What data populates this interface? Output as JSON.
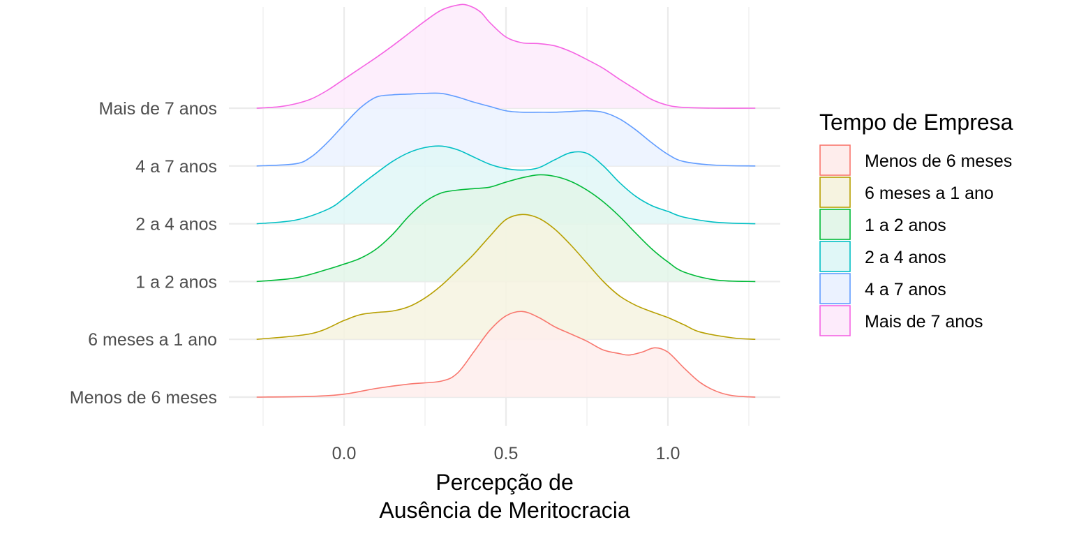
{
  "chart_data": {
    "type": "ridgeline",
    "xlabel_line1": "Percepção de",
    "xlabel_line2": "Ausência de Meritocracia",
    "xticks": [
      0.0,
      0.5,
      1.0
    ],
    "xtick_labels": [
      "0.0",
      "0.5",
      "1.0"
    ],
    "xlim": [
      -0.27,
      1.27
    ],
    "grid": true,
    "legend": {
      "title": "Tempo de Empresa",
      "placement": "right"
    },
    "series": [
      {
        "name": "Menos de 6 meses",
        "color": "#F8766D",
        "fill": "#FEEDEC",
        "x": [
          -0.27,
          -0.1,
          0.0,
          0.1,
          0.2,
          0.3,
          0.35,
          0.4,
          0.45,
          0.5,
          0.55,
          0.6,
          0.65,
          0.7,
          0.75,
          0.8,
          0.85,
          0.88,
          0.92,
          0.96,
          1.0,
          1.05,
          1.1,
          1.15,
          1.2,
          1.27
        ],
        "y": [
          0.0,
          0.01,
          0.04,
          0.12,
          0.18,
          0.22,
          0.33,
          0.62,
          0.92,
          1.12,
          1.18,
          1.1,
          0.97,
          0.87,
          0.77,
          0.65,
          0.6,
          0.58,
          0.62,
          0.68,
          0.62,
          0.4,
          0.2,
          0.08,
          0.02,
          0.0
        ]
      },
      {
        "name": "6 meses a 1 ano",
        "color": "#B79F00",
        "fill": "#F6F3E0",
        "x": [
          -0.27,
          -0.1,
          0.0,
          0.05,
          0.1,
          0.15,
          0.2,
          0.25,
          0.3,
          0.35,
          0.4,
          0.45,
          0.5,
          0.55,
          0.6,
          0.65,
          0.7,
          0.75,
          0.8,
          0.85,
          0.9,
          0.95,
          1.0,
          1.05,
          1.1,
          1.2,
          1.27
        ],
        "y": [
          0.0,
          0.08,
          0.26,
          0.34,
          0.37,
          0.39,
          0.45,
          0.57,
          0.74,
          0.95,
          1.17,
          1.42,
          1.65,
          1.72,
          1.67,
          1.52,
          1.3,
          1.05,
          0.8,
          0.6,
          0.47,
          0.38,
          0.3,
          0.2,
          0.1,
          0.02,
          0.0
        ]
      },
      {
        "name": "1 a 2 anos",
        "color": "#00BA38",
        "fill": "#E3F6E9",
        "x": [
          -0.27,
          -0.15,
          -0.05,
          0.0,
          0.05,
          0.1,
          0.15,
          0.2,
          0.25,
          0.3,
          0.35,
          0.4,
          0.45,
          0.5,
          0.55,
          0.6,
          0.65,
          0.7,
          0.75,
          0.8,
          0.85,
          0.9,
          0.95,
          1.0,
          1.05,
          1.15,
          1.27
        ],
        "y": [
          0.0,
          0.05,
          0.17,
          0.24,
          0.32,
          0.45,
          0.65,
          0.9,
          1.1,
          1.22,
          1.26,
          1.28,
          1.3,
          1.37,
          1.43,
          1.47,
          1.45,
          1.38,
          1.26,
          1.1,
          0.9,
          0.67,
          0.45,
          0.27,
          0.13,
          0.02,
          0.0
        ]
      },
      {
        "name": "2 a 4 anos",
        "color": "#00BFC4",
        "fill": "#E0F7F7",
        "x": [
          -0.27,
          -0.15,
          -0.05,
          0.0,
          0.05,
          0.1,
          0.15,
          0.2,
          0.25,
          0.3,
          0.35,
          0.4,
          0.45,
          0.5,
          0.55,
          0.6,
          0.65,
          0.7,
          0.75,
          0.8,
          0.85,
          0.9,
          0.95,
          1.0,
          1.05,
          1.15,
          1.27
        ],
        "y": [
          0.0,
          0.05,
          0.2,
          0.35,
          0.53,
          0.7,
          0.86,
          0.98,
          1.05,
          1.07,
          1.02,
          0.92,
          0.82,
          0.76,
          0.74,
          0.77,
          0.88,
          0.98,
          0.97,
          0.8,
          0.57,
          0.38,
          0.25,
          0.17,
          0.09,
          0.02,
          0.0
        ]
      },
      {
        "name": "4 a 7 anos",
        "color": "#619CFF",
        "fill": "#EBF2FF",
        "x": [
          -0.27,
          -0.15,
          -0.1,
          -0.05,
          0.0,
          0.05,
          0.1,
          0.15,
          0.2,
          0.25,
          0.3,
          0.35,
          0.4,
          0.45,
          0.5,
          0.55,
          0.6,
          0.65,
          0.7,
          0.75,
          0.8,
          0.85,
          0.9,
          0.95,
          1.0,
          1.05,
          1.15,
          1.27
        ],
        "y": [
          0.0,
          0.03,
          0.13,
          0.33,
          0.57,
          0.8,
          0.95,
          0.98,
          0.99,
          1.0,
          1.0,
          0.95,
          0.88,
          0.82,
          0.76,
          0.74,
          0.74,
          0.74,
          0.75,
          0.76,
          0.74,
          0.65,
          0.5,
          0.32,
          0.16,
          0.06,
          0.01,
          0.0
        ]
      },
      {
        "name": "Mais de 7 anos",
        "color": "#F564E3",
        "fill": "#FDEBFB",
        "x": [
          -0.27,
          -0.2,
          -0.15,
          -0.1,
          -0.05,
          0.0,
          0.05,
          0.1,
          0.15,
          0.2,
          0.25,
          0.3,
          0.35,
          0.38,
          0.42,
          0.45,
          0.5,
          0.55,
          0.6,
          0.65,
          0.7,
          0.75,
          0.8,
          0.85,
          0.9,
          0.95,
          1.0,
          1.05,
          1.15,
          1.27
        ],
        "y": [
          0.0,
          0.02,
          0.06,
          0.13,
          0.25,
          0.4,
          0.55,
          0.7,
          0.86,
          1.03,
          1.2,
          1.35,
          1.42,
          1.42,
          1.33,
          1.18,
          0.98,
          0.9,
          0.89,
          0.86,
          0.78,
          0.67,
          0.55,
          0.4,
          0.26,
          0.12,
          0.04,
          0.01,
          0.0,
          0.0
        ]
      }
    ]
  }
}
